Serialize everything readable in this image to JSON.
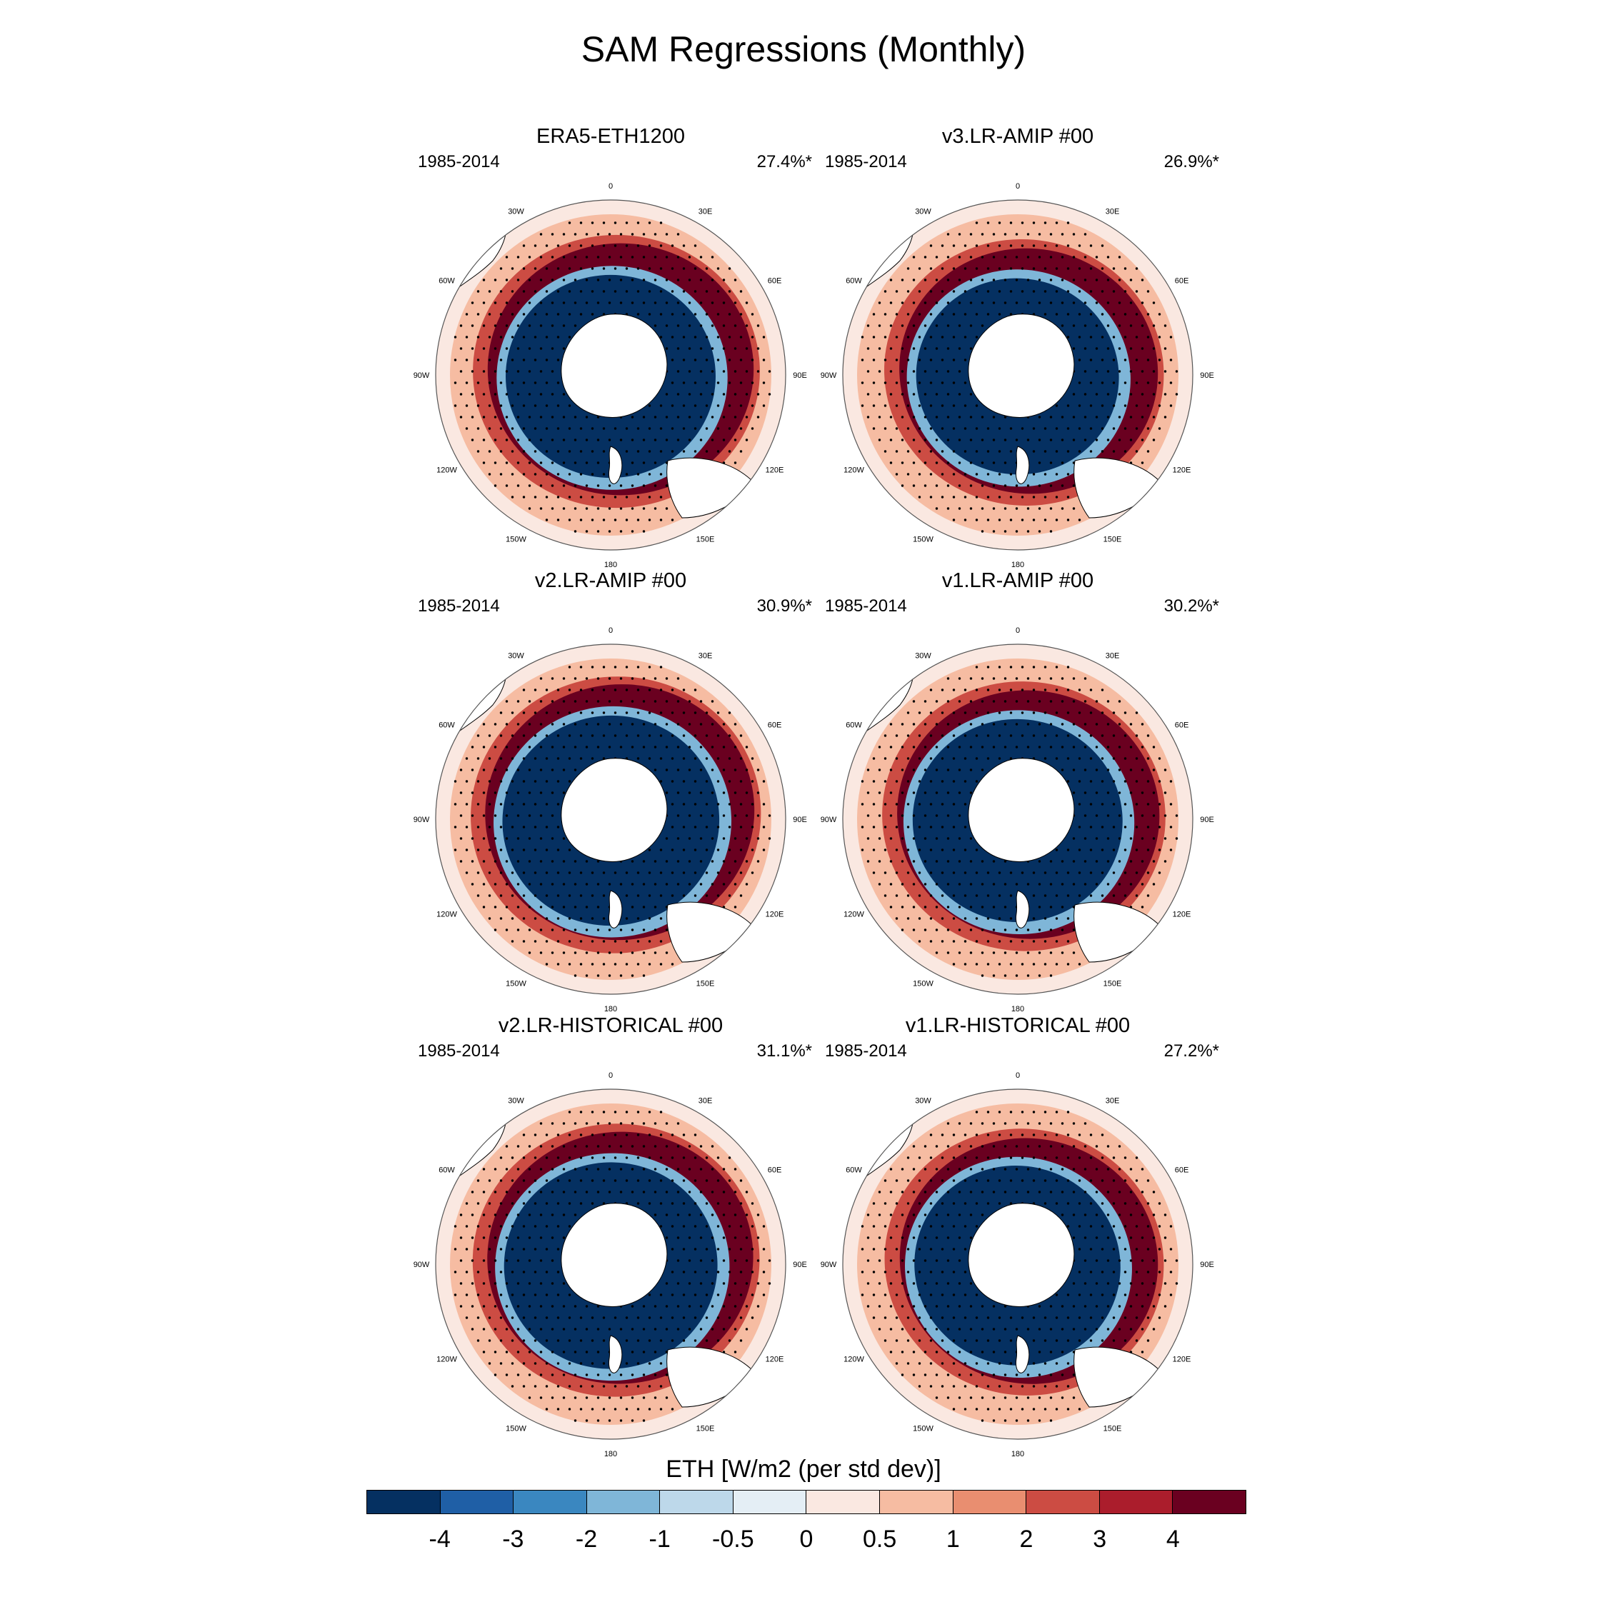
{
  "title": "SAM Regressions (Monthly)",
  "panels": [
    {
      "title": "ERA5-ETH1200",
      "period": "1985-2014",
      "percent": "27.4%*"
    },
    {
      "title": "v3.LR-AMIP  #00",
      "period": "1985-2014",
      "percent": "26.9%*"
    },
    {
      "title": "v2.LR-AMIP  #00",
      "period": "1985-2014",
      "percent": "30.9%*"
    },
    {
      "title": "v1.LR-AMIP  #00",
      "period": "1985-2014",
      "percent": "30.2%*"
    },
    {
      "title": "v2.LR-HISTORICAL  #00",
      "period": "1985-2014",
      "percent": "31.1%*"
    },
    {
      "title": "v1.LR-HISTORICAL  #00",
      "period": "1985-2014",
      "percent": "27.2%*"
    }
  ],
  "lon_labels": [
    "0",
    "30E",
    "60E",
    "90E",
    "120E",
    "150E",
    "180",
    "150W",
    "120W",
    "90W",
    "60W",
    "30W"
  ],
  "colorbar": {
    "title": "ETH [W/m2 (per std dev)]",
    "labels": [
      "-4",
      "-3",
      "-2",
      "-1",
      "-0.5",
      "0",
      "0.5",
      "1",
      "2",
      "3",
      "4"
    ],
    "colors": [
      "#053061",
      "#1f5fa6",
      "#3a87c0",
      "#7fb6d8",
      "#bdd8ea",
      "#e4eef5",
      "#fae8e1",
      "#f6bca2",
      "#e98e70",
      "#cc4c43",
      "#ab1d2c",
      "#6a0020"
    ]
  },
  "colors": {
    "land": "#ffffff",
    "dots": "#000000"
  }
}
